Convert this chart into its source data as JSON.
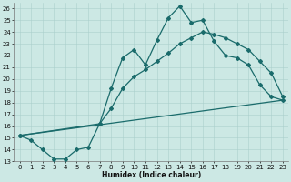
{
  "xlabel": "Humidex (Indice chaleur)",
  "xlim": [
    -0.5,
    23.5
  ],
  "ylim": [
    13,
    26.5
  ],
  "yticks": [
    13,
    14,
    15,
    16,
    17,
    18,
    19,
    20,
    21,
    22,
    23,
    24,
    25,
    26
  ],
  "xticks": [
    0,
    1,
    2,
    3,
    4,
    5,
    6,
    7,
    8,
    9,
    10,
    11,
    12,
    13,
    14,
    15,
    16,
    17,
    18,
    19,
    20,
    21,
    22,
    23
  ],
  "bg_color": "#cce8e4",
  "grid_color": "#aacfcc",
  "line_color": "#1a6b6b",
  "line1_x": [
    0,
    1,
    2,
    3,
    4,
    5,
    6,
    7,
    8,
    9,
    10,
    11,
    12,
    13,
    14,
    15,
    16,
    17,
    18,
    19,
    20,
    21,
    22,
    23
  ],
  "line1_y": [
    15.2,
    14.8,
    14.0,
    13.2,
    13.2,
    14.0,
    14.2,
    16.2,
    19.2,
    21.8,
    22.5,
    21.2,
    23.3,
    25.2,
    26.2,
    24.8,
    25.0,
    23.2,
    22.0,
    21.8,
    21.2,
    19.5,
    18.5,
    18.2
  ],
  "line2_x": [
    0,
    7,
    8,
    9,
    10,
    11,
    12,
    13,
    14,
    15,
    16,
    17,
    18,
    19,
    20,
    21,
    22,
    23
  ],
  "line2_y": [
    15.2,
    16.2,
    17.5,
    19.2,
    20.2,
    20.8,
    21.5,
    22.2,
    23.0,
    23.5,
    24.0,
    23.8,
    23.5,
    23.0,
    22.5,
    21.5,
    20.5,
    18.5
  ],
  "line3_x": [
    0,
    23
  ],
  "line3_y": [
    15.2,
    18.2
  ],
  "marker": "D",
  "markersize": 2.0,
  "linewidth": 0.9,
  "tick_fontsize": 5.0,
  "xlabel_fontsize": 5.5
}
